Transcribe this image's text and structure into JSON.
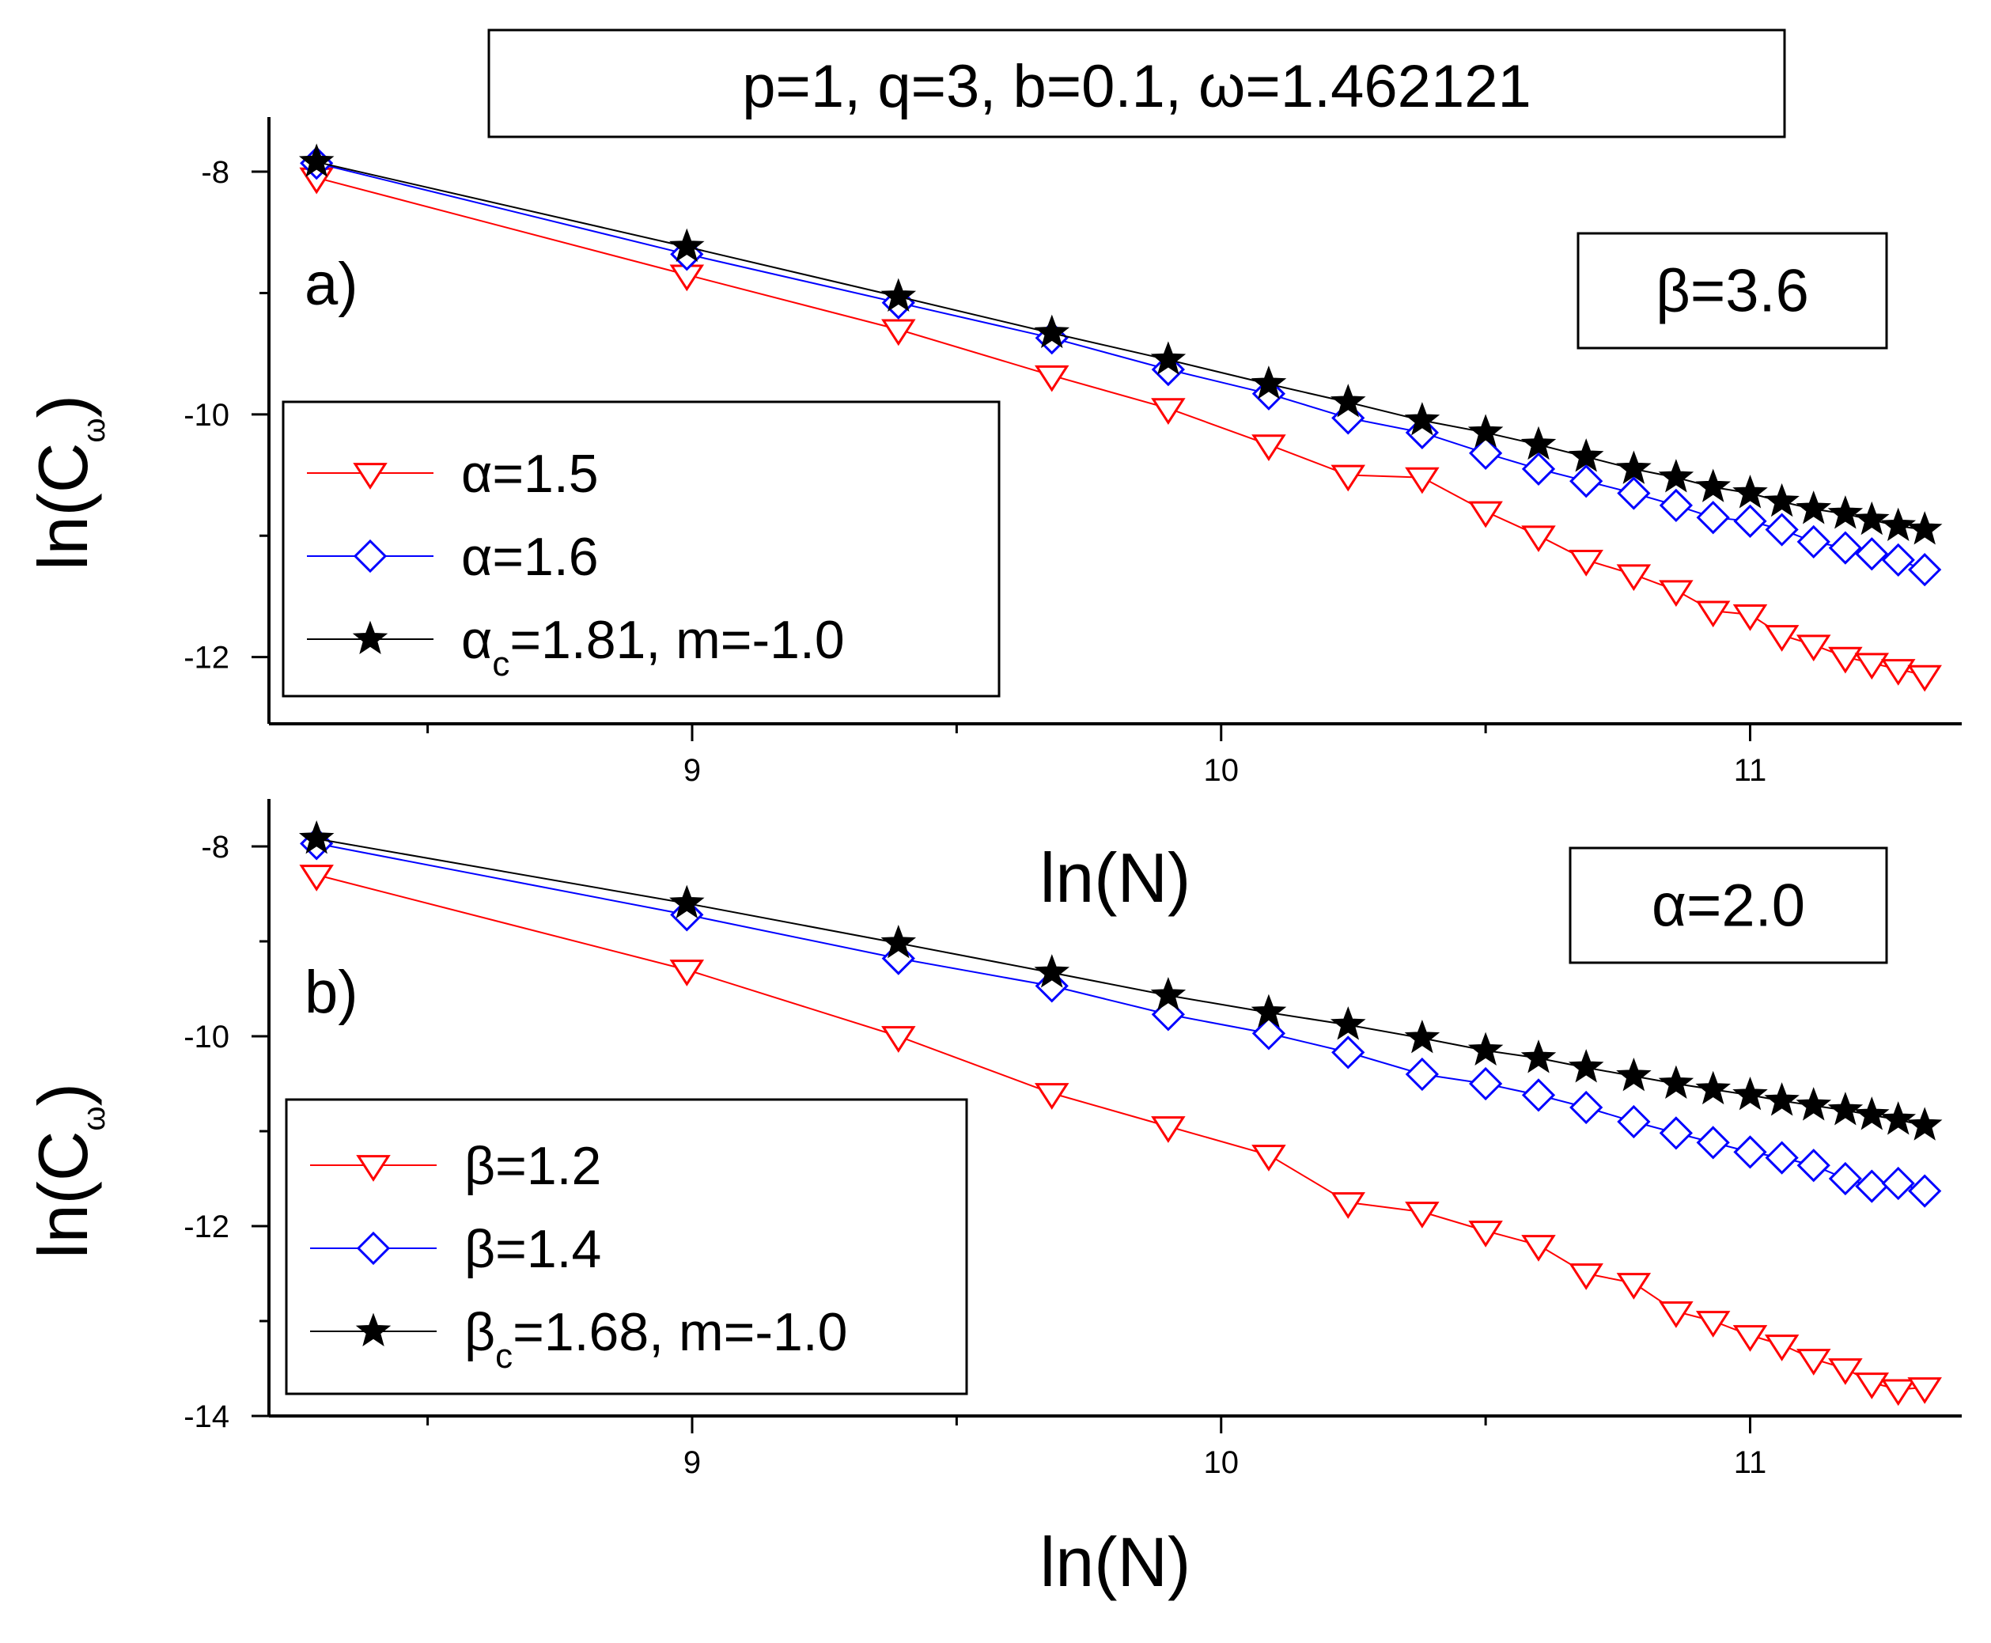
{
  "figure_title": "p=1, q=3, b=0.1, ω=1.462121",
  "chart_data": [
    {
      "type": "line",
      "panel_label": "a)",
      "box_label": "β=3.6",
      "xlabel": "ln(N)",
      "ylabel": "ln(C",
      "ylabel_sub": "ω",
      "ylabel_close": ")",
      "xlim": [
        8.2,
        11.4
      ],
      "ylim": [
        -12.55,
        -7.55
      ],
      "xticks_major": [
        9,
        10,
        11
      ],
      "xtick_labels": [
        "9",
        "10",
        "11"
      ],
      "xticks_minor": [
        8.5,
        9.5,
        10.5
      ],
      "yticks_major": [
        -8,
        -10,
        -12
      ],
      "ytick_labels": [
        "-8",
        "-10",
        "-12"
      ],
      "yticks_minor": [
        -9,
        -11
      ],
      "x": [
        8.29,
        8.99,
        9.39,
        9.68,
        9.9,
        10.09,
        10.24,
        10.38,
        10.5,
        10.6,
        10.69,
        10.78,
        10.86,
        10.93,
        11.0,
        11.06,
        11.12,
        11.18,
        11.23,
        11.28,
        11.33
      ],
      "series": [
        {
          "name": "α=1.5",
          "name_main": "α=1.5",
          "name_sub": "",
          "name_rest": "",
          "color": "#ff0000",
          "marker": "triangle-down",
          "values": [
            -8.05,
            -8.85,
            -9.3,
            -9.68,
            -9.95,
            -10.25,
            -10.5,
            -10.52,
            -10.8,
            -11.0,
            -11.2,
            -11.32,
            -11.45,
            -11.62,
            -11.65,
            -11.82,
            -11.9,
            -12.0,
            -12.05,
            -12.1,
            -12.15
          ]
        },
        {
          "name": "α=1.6",
          "name_main": "α=1.6",
          "name_sub": "",
          "name_rest": "",
          "color": "#0000ff",
          "marker": "diamond",
          "values": [
            -7.93,
            -8.68,
            -9.08,
            -9.37,
            -9.63,
            -9.83,
            -10.03,
            -10.15,
            -10.32,
            -10.45,
            -10.55,
            -10.65,
            -10.75,
            -10.85,
            -10.88,
            -10.95,
            -11.05,
            -11.1,
            -11.15,
            -11.2,
            -11.28
          ]
        },
        {
          "name": "αc=1.81, m=-1.0",
          "name_main": "α",
          "name_sub": "c",
          "name_rest": "=1.81, m=-1.0",
          "color": "#000000",
          "marker": "star",
          "values": [
            -7.92,
            -8.62,
            -9.03,
            -9.33,
            -9.55,
            -9.75,
            -9.9,
            -10.05,
            -10.15,
            -10.25,
            -10.35,
            -10.45,
            -10.52,
            -10.6,
            -10.65,
            -10.72,
            -10.78,
            -10.82,
            -10.87,
            -10.92,
            -10.95
          ]
        }
      ]
    },
    {
      "type": "line",
      "panel_label": "b)",
      "box_label": "α=2.0",
      "xlabel": "ln(N)",
      "ylabel": "ln(C",
      "ylabel_sub": "ω",
      "ylabel_close": ")",
      "xlim": [
        8.2,
        11.4
      ],
      "ylim": [
        -14.0,
        -7.5
      ],
      "xticks_major": [
        9,
        10,
        11
      ],
      "xtick_labels": [
        "9",
        "10",
        "11"
      ],
      "xticks_minor": [
        8.5,
        9.5,
        10.5
      ],
      "yticks_major": [
        -8,
        -10,
        -12,
        -14
      ],
      "ytick_labels": [
        "-8",
        "-10",
        "-12",
        "-14"
      ],
      "yticks_minor": [
        -9,
        -11,
        -13
      ],
      "x": [
        8.29,
        8.99,
        9.39,
        9.68,
        9.9,
        10.09,
        10.24,
        10.38,
        10.5,
        10.6,
        10.69,
        10.78,
        10.86,
        10.93,
        11.0,
        11.06,
        11.12,
        11.18,
        11.23,
        11.28,
        11.33
      ],
      "series": [
        {
          "name": "β=1.2",
          "name_main": "β=1.2",
          "name_sub": "",
          "name_rest": "",
          "color": "#ff0000",
          "marker": "triangle-down",
          "values": [
            -8.3,
            -9.3,
            -10.0,
            -10.6,
            -10.95,
            -11.25,
            -11.75,
            -11.85,
            -12.05,
            -12.2,
            -12.5,
            -12.6,
            -12.9,
            -13.0,
            -13.15,
            -13.25,
            -13.4,
            -13.5,
            -13.65,
            -13.72,
            -13.7
          ]
        },
        {
          "name": "β=1.4",
          "name_main": "β=1.4",
          "name_sub": "",
          "name_rest": "",
          "color": "#0000ff",
          "marker": "diamond",
          "values": [
            -7.97,
            -8.72,
            -9.18,
            -9.47,
            -9.77,
            -9.97,
            -10.17,
            -10.4,
            -10.5,
            -10.62,
            -10.75,
            -10.9,
            -11.02,
            -11.12,
            -11.22,
            -11.28,
            -11.36,
            -11.5,
            -11.58,
            -11.55,
            -11.63
          ]
        },
        {
          "name": "βc=1.68, m=-1.0",
          "name_main": "β",
          "name_sub": "c",
          "name_rest": "=1.68, m=-1.0",
          "color": "#000000",
          "marker": "star",
          "values": [
            -7.92,
            -8.6,
            -9.02,
            -9.33,
            -9.57,
            -9.75,
            -9.88,
            -10.02,
            -10.15,
            -10.23,
            -10.33,
            -10.42,
            -10.5,
            -10.56,
            -10.62,
            -10.68,
            -10.73,
            -10.78,
            -10.83,
            -10.88,
            -10.94
          ]
        }
      ]
    }
  ]
}
